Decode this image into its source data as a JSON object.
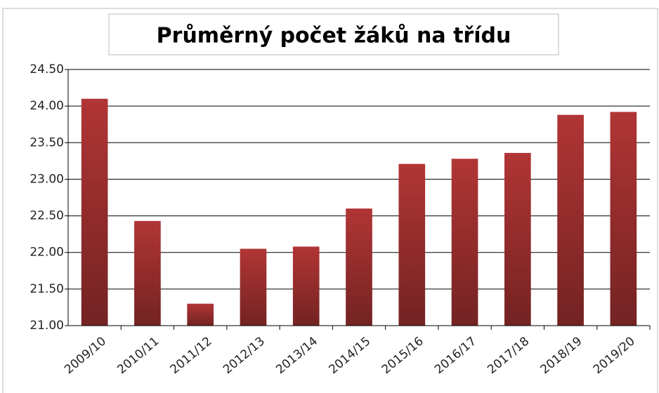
{
  "chart_data": {
    "type": "bar",
    "title": "Průměrný počet žáků na třídu",
    "categories": [
      "2009/10",
      "2010/11",
      "2011/12",
      "2012/13",
      "2013/14",
      "2014/15",
      "2015/16",
      "2016/17",
      "2017/18",
      "2018/19",
      "2019/20"
    ],
    "values": [
      24.1,
      22.43,
      21.3,
      22.05,
      22.08,
      22.6,
      23.21,
      23.28,
      23.36,
      23.88,
      23.92
    ],
    "color": "#b13535",
    "ylim": [
      21.0,
      24.5
    ],
    "yticks": [
      {
        "value": 21.0,
        "label": "21.00"
      },
      {
        "value": 21.5,
        "label": "21.50"
      },
      {
        "value": 22.0,
        "label": "22.00"
      },
      {
        "value": 22.5,
        "label": "22.50"
      },
      {
        "value": 23.0,
        "label": "23.00"
      },
      {
        "value": 23.5,
        "label": "23.50"
      },
      {
        "value": 24.0,
        "label": "24.00"
      },
      {
        "value": 24.5,
        "label": "24.50"
      }
    ],
    "grid": true
  }
}
